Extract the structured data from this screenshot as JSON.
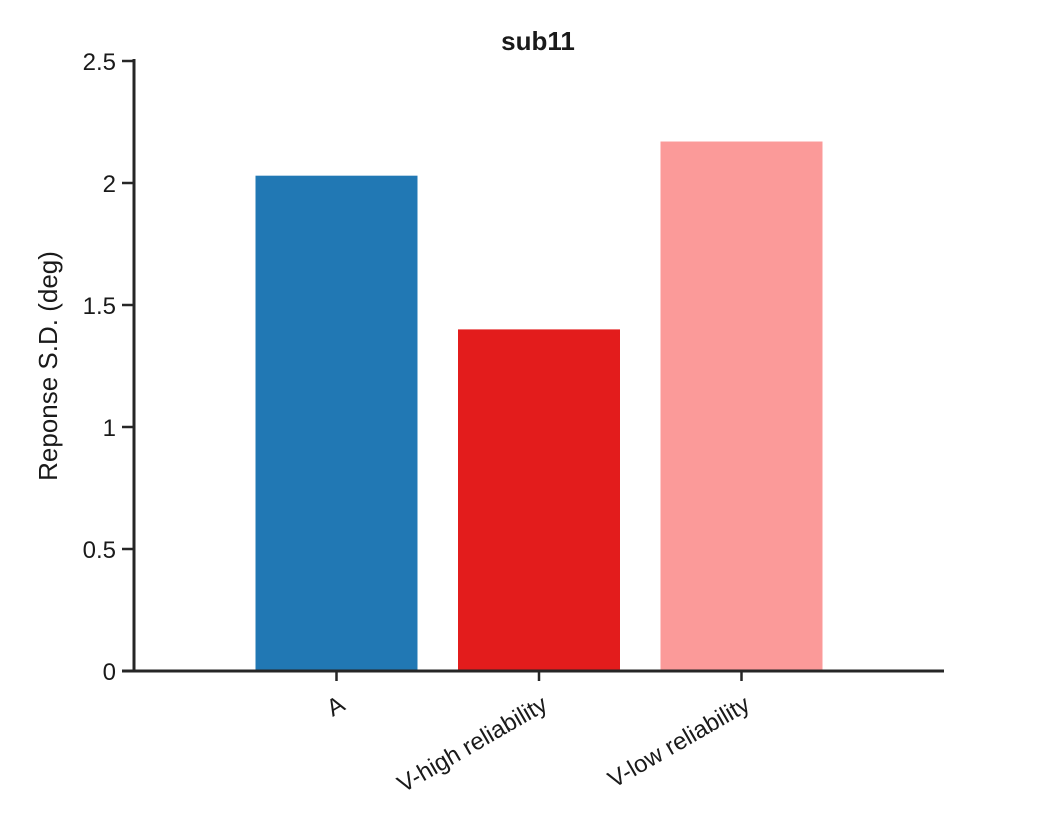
{
  "chart_data": {
    "type": "bar",
    "title": "sub11",
    "xlabel": "",
    "ylabel": "Reponse S.D. (deg)",
    "categories": [
      "A",
      "V-high reliability",
      "V-low reliability"
    ],
    "values": [
      2.03,
      1.4,
      2.17
    ],
    "colors": [
      "#2178b4",
      "#e31c1c",
      "#fb9a99"
    ],
    "ylim": [
      0,
      2.5
    ],
    "yticks": [
      0,
      0.5,
      1,
      1.5,
      2,
      2.5
    ],
    "ytick_labels": [
      "0",
      "0.5",
      "1",
      "1.5",
      "2",
      "2.5"
    ],
    "grid": false,
    "legend": "none"
  }
}
